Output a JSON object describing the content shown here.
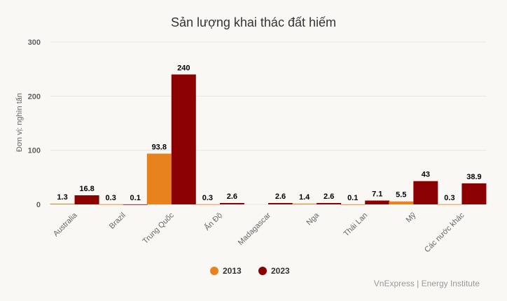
{
  "chart_data": {
    "type": "bar",
    "title": "Sản lượng khai thác đất hiếm",
    "ylabel": "Đơn vị: nghìn tấn",
    "xlabel": "",
    "ylim": [
      0,
      300
    ],
    "yticks": [
      "0",
      "100",
      "200",
      "300"
    ],
    "categories": [
      "Australia",
      "Brazil",
      "Trung Quốc",
      "Ấn Độ",
      "Madagascar",
      "Nga",
      "Thái Lan",
      "Mỹ",
      "Các nước khác"
    ],
    "series": [
      {
        "name": "2013",
        "color": "#e8821c",
        "values": [
          1.3,
          0.3,
          93.8,
          0.3,
          null,
          1.4,
          0.1,
          5.5,
          0.3
        ],
        "labels": [
          "1.3",
          "0.3",
          "93.8",
          "0.3",
          "",
          "1.4",
          "0.1",
          "5.5",
          "0.3"
        ]
      },
      {
        "name": "2023",
        "color": "#8b0000",
        "values": [
          16.8,
          0.1,
          240,
          2.6,
          2.6,
          2.6,
          7.1,
          43,
          38.9
        ],
        "labels": [
          "16.8",
          "0.1",
          "240",
          "2.6",
          "2.6",
          "2.6",
          "7.1",
          "43",
          "38.9"
        ]
      }
    ],
    "legend_position": "bottom-center"
  },
  "source": "VnExpress | Energy Institute"
}
